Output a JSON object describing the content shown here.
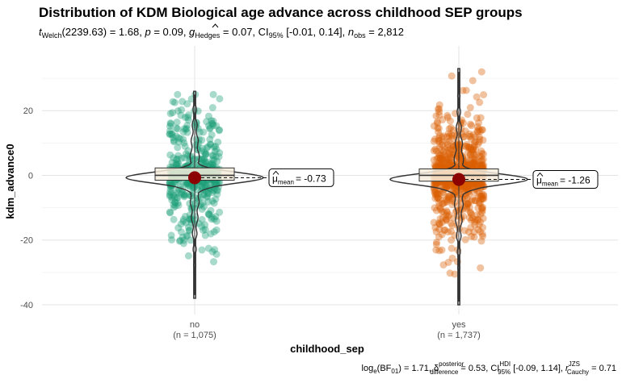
{
  "chart_data": {
    "type": "violin",
    "title": "Distribution of KDM Biological age advance across childhood SEP groups",
    "subtitle": {
      "t_prefix": "t",
      "t_sub": "Welch",
      "t_value": "(2239.63) = 1.68, ",
      "p_label": "p",
      "p_value": " = 0.09, ",
      "g_label": "g",
      "g_sub": "Hedges",
      "g_value": " = 0.07, CI",
      "ci_sub": "95%",
      "ci_value": " [-0.01, 0.14], ",
      "n_label": "n",
      "n_sub": "obs",
      "n_value": " = 2,812"
    },
    "xlabel": "childhood_sep",
    "ylabel": "kdm_advance0",
    "ylim": [
      -43,
      40
    ],
    "yticks": [
      -40,
      -20,
      0,
      20
    ],
    "grid": true,
    "groups": [
      {
        "name": "no",
        "count_label": "(n = 1,075)",
        "n": 1075,
        "color": "#1b9e77",
        "mean": -0.73,
        "mean_text": "= -0.73",
        "q1": -1.5,
        "median": 0.0,
        "q3": 2.3,
        "y_min": -38,
        "y_max": 26
      },
      {
        "name": "yes",
        "count_label": "(n = 1,737)",
        "n": 1737,
        "color": "#d95f02",
        "mean": -1.26,
        "mean_text": "= -1.26",
        "q1": -1.8,
        "median": 0.0,
        "q3": 2.0,
        "y_min": -40,
        "y_max": 33
      }
    ],
    "caption": {
      "log_a": "log",
      "log_sub": "e",
      "log_b": "(BF",
      "bf_sub": "01",
      "bf_value": ") = 1.71, ",
      "delta": "δ",
      "delta_sup": "posterior",
      "delta_sub": "difference",
      "delta_value": " = 0.53, CI",
      "ci_sup": "HDI",
      "ci_sub": "95%",
      "ci_value": " [-0.09, 1.14], ",
      "r": "r",
      "r_sup": "JZS",
      "r_sub": "Cauchy",
      "r_value": " = 0.71"
    },
    "mean_symbol": "μ",
    "mean_sub": "mean",
    "mean_marker_color": "#8b0000"
  }
}
